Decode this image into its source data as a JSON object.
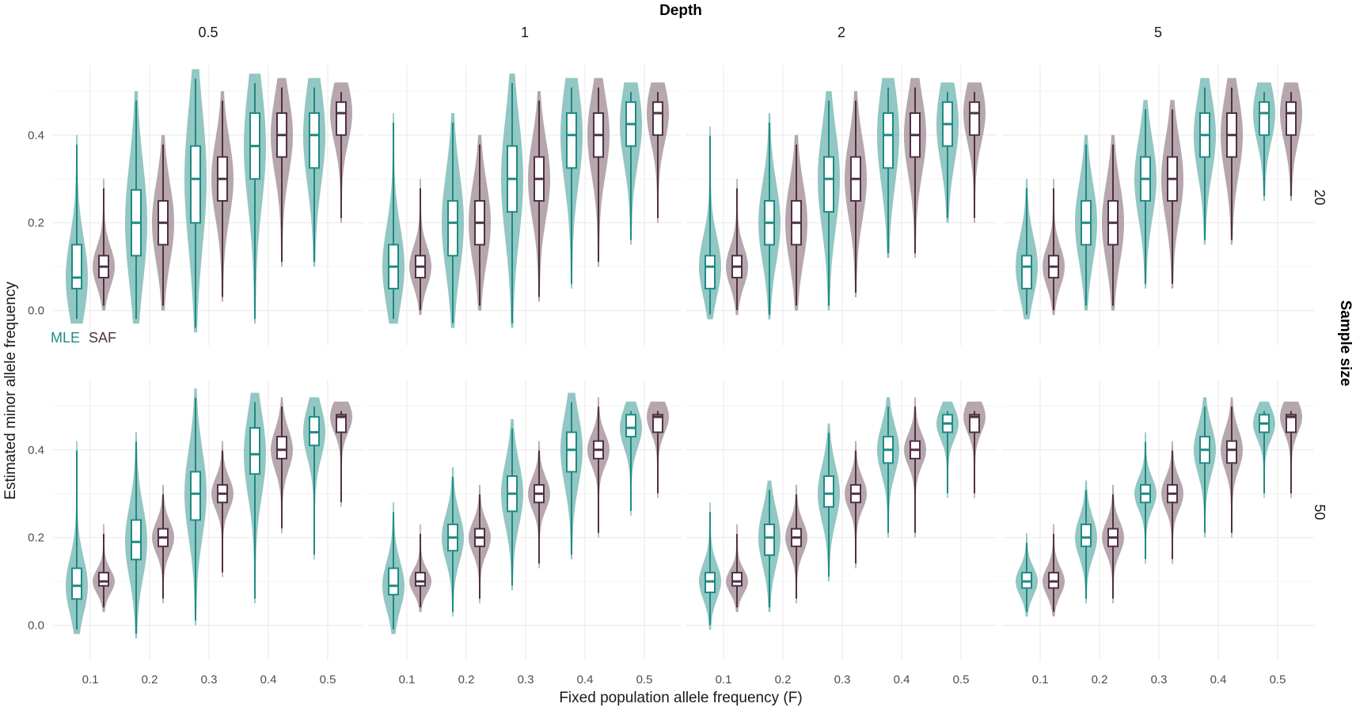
{
  "chart_data": {
    "type": "violin",
    "title": "Depth",
    "facet_col_title": "Depth",
    "facet_row_title": "Sample size",
    "xlabel": "Fixed population allele frequency (F)",
    "ylabel": "Estimated minor allele frequency",
    "columns": [
      "0.5",
      "1",
      "2",
      "5"
    ],
    "rows": [
      "20",
      "50"
    ],
    "categories": [
      "0.1",
      "0.2",
      "0.3",
      "0.4",
      "0.5"
    ],
    "x_ticks": [
      "0.1",
      "0.2",
      "0.3",
      "0.4",
      "0.5"
    ],
    "y_ticks": [
      "0.0",
      "0.2",
      "0.4"
    ],
    "ylim": [
      -0.08,
      0.56
    ],
    "grid": true,
    "legend": {
      "placement": "inside-bottom-left",
      "entries": [
        {
          "label": "MLE",
          "color": "#1f8a84"
        },
        {
          "label": "SAF",
          "color": "#4f3046"
        }
      ]
    },
    "series_colors": {
      "MLE": "#1f8a84",
      "SAF": "#4f3046"
    },
    "series_fill": {
      "MLE": "#7fbdb8",
      "SAF": "#a9989f"
    },
    "panels": [
      {
        "col": "0.5",
        "row": "20",
        "groups": [
          {
            "F": 0.1,
            "MLE": {
              "min": -0.03,
              "q1": 0.05,
              "med": 0.075,
              "q3": 0.15,
              "max": 0.4
            },
            "SAF": {
              "min": 0.0,
              "q1": 0.075,
              "med": 0.1,
              "q3": 0.125,
              "max": 0.3
            }
          },
          {
            "F": 0.2,
            "MLE": {
              "min": -0.03,
              "q1": 0.125,
              "med": 0.2,
              "q3": 0.275,
              "max": 0.5
            },
            "SAF": {
              "min": 0.0,
              "q1": 0.15,
              "med": 0.2,
              "q3": 0.25,
              "max": 0.4
            }
          },
          {
            "F": 0.3,
            "MLE": {
              "min": -0.05,
              "q1": 0.2,
              "med": 0.3,
              "q3": 0.375,
              "max": 0.55
            },
            "SAF": {
              "min": 0.02,
              "q1": 0.25,
              "med": 0.3,
              "q3": 0.35,
              "max": 0.5
            }
          },
          {
            "F": 0.4,
            "MLE": {
              "min": -0.03,
              "q1": 0.3,
              "med": 0.375,
              "q3": 0.45,
              "max": 0.54
            },
            "SAF": {
              "min": 0.1,
              "q1": 0.35,
              "med": 0.4,
              "q3": 0.45,
              "max": 0.53
            }
          },
          {
            "F": 0.5,
            "MLE": {
              "min": 0.1,
              "q1": 0.325,
              "med": 0.4,
              "q3": 0.45,
              "max": 0.53
            },
            "SAF": {
              "min": 0.2,
              "q1": 0.4,
              "med": 0.45,
              "q3": 0.475,
              "max": 0.52
            }
          }
        ]
      },
      {
        "col": "1",
        "row": "20",
        "groups": [
          {
            "F": 0.1,
            "MLE": {
              "min": -0.03,
              "q1": 0.05,
              "med": 0.1,
              "q3": 0.15,
              "max": 0.45
            },
            "SAF": {
              "min": -0.01,
              "q1": 0.075,
              "med": 0.1,
              "q3": 0.125,
              "max": 0.3
            }
          },
          {
            "F": 0.2,
            "MLE": {
              "min": -0.04,
              "q1": 0.125,
              "med": 0.2,
              "q3": 0.25,
              "max": 0.45
            },
            "SAF": {
              "min": 0.0,
              "q1": 0.15,
              "med": 0.2,
              "q3": 0.25,
              "max": 0.4
            }
          },
          {
            "F": 0.3,
            "MLE": {
              "min": -0.04,
              "q1": 0.225,
              "med": 0.3,
              "q3": 0.375,
              "max": 0.54
            },
            "SAF": {
              "min": 0.02,
              "q1": 0.25,
              "med": 0.3,
              "q3": 0.35,
              "max": 0.5
            }
          },
          {
            "F": 0.4,
            "MLE": {
              "min": 0.05,
              "q1": 0.325,
              "med": 0.4,
              "q3": 0.45,
              "max": 0.53
            },
            "SAF": {
              "min": 0.1,
              "q1": 0.35,
              "med": 0.4,
              "q3": 0.45,
              "max": 0.53
            }
          },
          {
            "F": 0.5,
            "MLE": {
              "min": 0.15,
              "q1": 0.375,
              "med": 0.425,
              "q3": 0.475,
              "max": 0.52
            },
            "SAF": {
              "min": 0.2,
              "q1": 0.4,
              "med": 0.45,
              "q3": 0.475,
              "max": 0.52
            }
          }
        ]
      },
      {
        "col": "2",
        "row": "20",
        "groups": [
          {
            "F": 0.1,
            "MLE": {
              "min": -0.02,
              "q1": 0.05,
              "med": 0.1,
              "q3": 0.125,
              "max": 0.42
            },
            "SAF": {
              "min": -0.01,
              "q1": 0.075,
              "med": 0.1,
              "q3": 0.125,
              "max": 0.3
            }
          },
          {
            "F": 0.2,
            "MLE": {
              "min": -0.02,
              "q1": 0.15,
              "med": 0.2,
              "q3": 0.25,
              "max": 0.45
            },
            "SAF": {
              "min": 0.0,
              "q1": 0.15,
              "med": 0.2,
              "q3": 0.25,
              "max": 0.4
            }
          },
          {
            "F": 0.3,
            "MLE": {
              "min": 0.0,
              "q1": 0.225,
              "med": 0.3,
              "q3": 0.35,
              "max": 0.5
            },
            "SAF": {
              "min": 0.03,
              "q1": 0.25,
              "med": 0.3,
              "q3": 0.35,
              "max": 0.5
            }
          },
          {
            "F": 0.4,
            "MLE": {
              "min": 0.12,
              "q1": 0.325,
              "med": 0.4,
              "q3": 0.45,
              "max": 0.53
            },
            "SAF": {
              "min": 0.12,
              "q1": 0.35,
              "med": 0.4,
              "q3": 0.45,
              "max": 0.53
            }
          },
          {
            "F": 0.5,
            "MLE": {
              "min": 0.2,
              "q1": 0.375,
              "med": 0.425,
              "q3": 0.475,
              "max": 0.52
            },
            "SAF": {
              "min": 0.2,
              "q1": 0.4,
              "med": 0.45,
              "q3": 0.475,
              "max": 0.52
            }
          }
        ]
      },
      {
        "col": "5",
        "row": "20",
        "groups": [
          {
            "F": 0.1,
            "MLE": {
              "min": -0.02,
              "q1": 0.05,
              "med": 0.1,
              "q3": 0.125,
              "max": 0.3
            },
            "SAF": {
              "min": -0.01,
              "q1": 0.075,
              "med": 0.1,
              "q3": 0.125,
              "max": 0.3
            }
          },
          {
            "F": 0.2,
            "MLE": {
              "min": 0.0,
              "q1": 0.15,
              "med": 0.2,
              "q3": 0.25,
              "max": 0.4
            },
            "SAF": {
              "min": 0.0,
              "q1": 0.15,
              "med": 0.2,
              "q3": 0.25,
              "max": 0.4
            }
          },
          {
            "F": 0.3,
            "MLE": {
              "min": 0.05,
              "q1": 0.25,
              "med": 0.3,
              "q3": 0.35,
              "max": 0.48
            },
            "SAF": {
              "min": 0.05,
              "q1": 0.25,
              "med": 0.3,
              "q3": 0.35,
              "max": 0.48
            }
          },
          {
            "F": 0.4,
            "MLE": {
              "min": 0.15,
              "q1": 0.35,
              "med": 0.4,
              "q3": 0.45,
              "max": 0.53
            },
            "SAF": {
              "min": 0.15,
              "q1": 0.35,
              "med": 0.4,
              "q3": 0.45,
              "max": 0.53
            }
          },
          {
            "F": 0.5,
            "MLE": {
              "min": 0.25,
              "q1": 0.4,
              "med": 0.45,
              "q3": 0.475,
              "max": 0.52
            },
            "SAF": {
              "min": 0.25,
              "q1": 0.4,
              "med": 0.45,
              "q3": 0.475,
              "max": 0.52
            }
          }
        ]
      },
      {
        "col": "0.5",
        "row": "50",
        "groups": [
          {
            "F": 0.1,
            "MLE": {
              "min": -0.02,
              "q1": 0.06,
              "med": 0.09,
              "q3": 0.13,
              "max": 0.42
            },
            "SAF": {
              "min": 0.03,
              "q1": 0.09,
              "med": 0.1,
              "q3": 0.12,
              "max": 0.23
            }
          },
          {
            "F": 0.2,
            "MLE": {
              "min": -0.03,
              "q1": 0.15,
              "med": 0.19,
              "q3": 0.24,
              "max": 0.44
            },
            "SAF": {
              "min": 0.05,
              "q1": 0.18,
              "med": 0.2,
              "q3": 0.22,
              "max": 0.32
            }
          },
          {
            "F": 0.3,
            "MLE": {
              "min": 0.0,
              "q1": 0.24,
              "med": 0.3,
              "q3": 0.35,
              "max": 0.54
            },
            "SAF": {
              "min": 0.11,
              "q1": 0.28,
              "med": 0.3,
              "q3": 0.32,
              "max": 0.42
            }
          },
          {
            "F": 0.4,
            "MLE": {
              "min": 0.05,
              "q1": 0.345,
              "med": 0.39,
              "q3": 0.45,
              "max": 0.53
            },
            "SAF": {
              "min": 0.21,
              "q1": 0.38,
              "med": 0.4,
              "q3": 0.43,
              "max": 0.52
            }
          },
          {
            "F": 0.5,
            "MLE": {
              "min": 0.15,
              "q1": 0.41,
              "med": 0.44,
              "q3": 0.475,
              "max": 0.52
            },
            "SAF": {
              "min": 0.27,
              "q1": 0.44,
              "med": 0.475,
              "q3": 0.48,
              "max": 0.51
            }
          }
        ]
      },
      {
        "col": "1",
        "row": "50",
        "groups": [
          {
            "F": 0.1,
            "MLE": {
              "min": -0.02,
              "q1": 0.07,
              "med": 0.09,
              "q3": 0.13,
              "max": 0.28
            },
            "SAF": {
              "min": 0.03,
              "q1": 0.09,
              "med": 0.1,
              "q3": 0.12,
              "max": 0.23
            }
          },
          {
            "F": 0.2,
            "MLE": {
              "min": 0.02,
              "q1": 0.17,
              "med": 0.2,
              "q3": 0.23,
              "max": 0.36
            },
            "SAF": {
              "min": 0.05,
              "q1": 0.18,
              "med": 0.2,
              "q3": 0.22,
              "max": 0.32
            }
          },
          {
            "F": 0.3,
            "MLE": {
              "min": 0.08,
              "q1": 0.26,
              "med": 0.3,
              "q3": 0.34,
              "max": 0.47
            },
            "SAF": {
              "min": 0.13,
              "q1": 0.28,
              "med": 0.3,
              "q3": 0.32,
              "max": 0.42
            }
          },
          {
            "F": 0.4,
            "MLE": {
              "min": 0.15,
              "q1": 0.35,
              "med": 0.4,
              "q3": 0.44,
              "max": 0.53
            },
            "SAF": {
              "min": 0.2,
              "q1": 0.38,
              "med": 0.4,
              "q3": 0.42,
              "max": 0.52
            }
          },
          {
            "F": 0.5,
            "MLE": {
              "min": 0.25,
              "q1": 0.43,
              "med": 0.45,
              "q3": 0.48,
              "max": 0.51
            },
            "SAF": {
              "min": 0.29,
              "q1": 0.44,
              "med": 0.475,
              "q3": 0.48,
              "max": 0.51
            }
          }
        ]
      },
      {
        "col": "2",
        "row": "50",
        "groups": [
          {
            "F": 0.1,
            "MLE": {
              "min": -0.01,
              "q1": 0.075,
              "med": 0.1,
              "q3": 0.12,
              "max": 0.28
            },
            "SAF": {
              "min": 0.03,
              "q1": 0.09,
              "med": 0.1,
              "q3": 0.12,
              "max": 0.23
            }
          },
          {
            "F": 0.2,
            "MLE": {
              "min": 0.03,
              "q1": 0.16,
              "med": 0.2,
              "q3": 0.23,
              "max": 0.33
            },
            "SAF": {
              "min": 0.05,
              "q1": 0.18,
              "med": 0.2,
              "q3": 0.22,
              "max": 0.32
            }
          },
          {
            "F": 0.3,
            "MLE": {
              "min": 0.1,
              "q1": 0.27,
              "med": 0.3,
              "q3": 0.34,
              "max": 0.46
            },
            "SAF": {
              "min": 0.13,
              "q1": 0.28,
              "med": 0.3,
              "q3": 0.32,
              "max": 0.42
            }
          },
          {
            "F": 0.4,
            "MLE": {
              "min": 0.2,
              "q1": 0.37,
              "med": 0.4,
              "q3": 0.43,
              "max": 0.52
            },
            "SAF": {
              "min": 0.2,
              "q1": 0.38,
              "med": 0.4,
              "q3": 0.42,
              "max": 0.52
            }
          },
          {
            "F": 0.5,
            "MLE": {
              "min": 0.29,
              "q1": 0.44,
              "med": 0.46,
              "q3": 0.48,
              "max": 0.51
            },
            "SAF": {
              "min": 0.29,
              "q1": 0.44,
              "med": 0.475,
              "q3": 0.48,
              "max": 0.51
            }
          }
        ]
      },
      {
        "col": "5",
        "row": "50",
        "groups": [
          {
            "F": 0.1,
            "MLE": {
              "min": 0.02,
              "q1": 0.085,
              "med": 0.1,
              "q3": 0.12,
              "max": 0.21
            },
            "SAF": {
              "min": 0.02,
              "q1": 0.085,
              "med": 0.1,
              "q3": 0.12,
              "max": 0.23
            }
          },
          {
            "F": 0.2,
            "MLE": {
              "min": 0.05,
              "q1": 0.18,
              "med": 0.2,
              "q3": 0.23,
              "max": 0.33
            },
            "SAF": {
              "min": 0.05,
              "q1": 0.18,
              "med": 0.2,
              "q3": 0.22,
              "max": 0.32
            }
          },
          {
            "F": 0.3,
            "MLE": {
              "min": 0.14,
              "q1": 0.28,
              "med": 0.3,
              "q3": 0.32,
              "max": 0.44
            },
            "SAF": {
              "min": 0.14,
              "q1": 0.28,
              "med": 0.3,
              "q3": 0.32,
              "max": 0.42
            }
          },
          {
            "F": 0.4,
            "MLE": {
              "min": 0.2,
              "q1": 0.37,
              "med": 0.4,
              "q3": 0.43,
              "max": 0.52
            },
            "SAF": {
              "min": 0.2,
              "q1": 0.37,
              "med": 0.4,
              "q3": 0.42,
              "max": 0.52
            }
          },
          {
            "F": 0.5,
            "MLE": {
              "min": 0.29,
              "q1": 0.44,
              "med": 0.46,
              "q3": 0.48,
              "max": 0.51
            },
            "SAF": {
              "min": 0.29,
              "q1": 0.44,
              "med": 0.475,
              "q3": 0.48,
              "max": 0.51
            }
          }
        ]
      }
    ]
  }
}
